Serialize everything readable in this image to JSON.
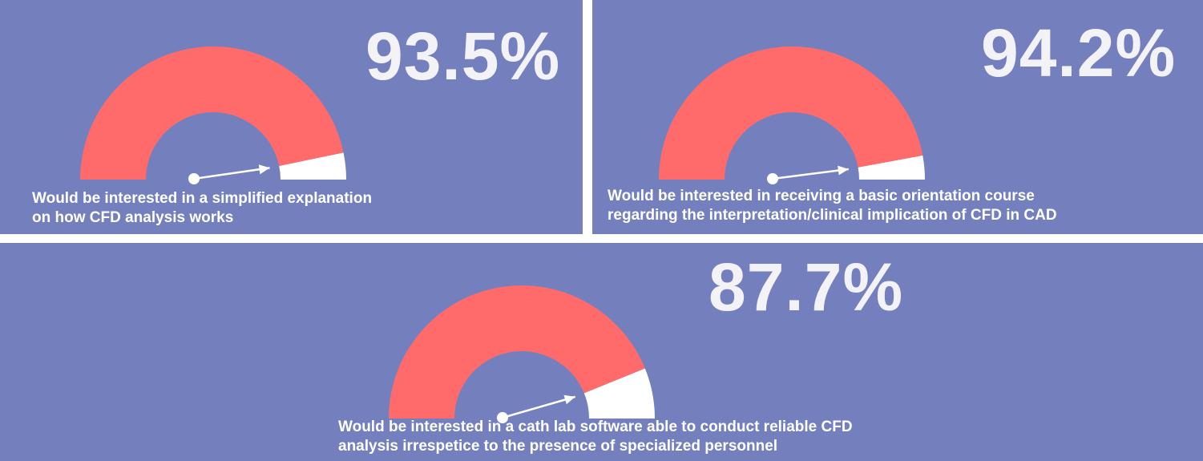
{
  "chart_data": [
    {
      "type": "gauge",
      "value": 93.5,
      "max": 100,
      "value_label": "93.5%",
      "caption_lines": [
        "Would be interested in a simplified explanation",
        "on how CFD analysis works"
      ],
      "colors": {
        "fill": "#ff6b6b",
        "remainder": "#ffffff",
        "background": "#7480bd"
      }
    },
    {
      "type": "gauge",
      "value": 94.2,
      "max": 100,
      "value_label": "94.2%",
      "caption_lines": [
        "Would be interested in receiving a basic orientation course",
        "regarding the interpretation/clinical implication of CFD in CAD"
      ],
      "colors": {
        "fill": "#ff6b6b",
        "remainder": "#ffffff",
        "background": "#7480bd"
      }
    },
    {
      "type": "gauge",
      "value": 87.7,
      "max": 100,
      "value_label": "87.7%",
      "caption_lines": [
        "Would be interested in a cath lab software able to conduct reliable CFD",
        "analysis irrespetice to the presence of specialized personnel"
      ],
      "colors": {
        "fill": "#ff6b6b",
        "remainder": "#ffffff",
        "background": "#7480bd"
      }
    }
  ]
}
